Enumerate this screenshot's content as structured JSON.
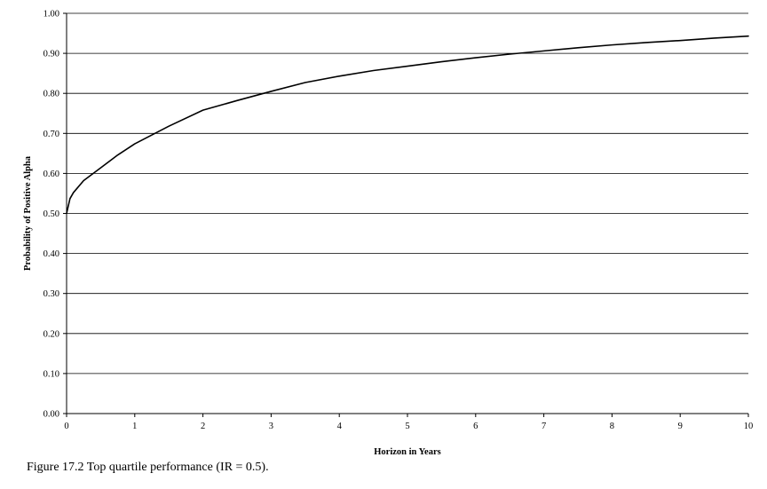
{
  "caption": "Figure 17.2 Top quartile performance (IR = 0.5).",
  "colors": {
    "line": "#000000",
    "grid": "#000000",
    "background": "#ffffff"
  },
  "chart_data": {
    "type": "line",
    "title": "",
    "xlabel": "Horizon in Years",
    "ylabel": "Probability of Positive Alpha",
    "xlim": [
      0,
      10
    ],
    "ylim": [
      0,
      1
    ],
    "xticks": [
      "0",
      "1",
      "2",
      "3",
      "4",
      "5",
      "6",
      "7",
      "8",
      "9",
      "10"
    ],
    "yticks": [
      "0.00",
      "0.10",
      "0.20",
      "0.30",
      "0.40",
      "0.50",
      "0.60",
      "0.70",
      "0.80",
      "0.90",
      "1.00"
    ],
    "grid": "horizontal",
    "legend": "none",
    "series": [
      {
        "x": [
          0,
          0.05,
          0.1,
          0.25,
          0.5,
          0.75,
          1,
          1.5,
          2,
          2.5,
          3,
          3.5,
          4,
          4.5,
          5,
          5.5,
          6,
          6.5,
          7,
          7.5,
          8,
          8.5,
          9,
          9.5,
          10
        ],
        "y": [
          0.5,
          0.537,
          0.552,
          0.582,
          0.614,
          0.646,
          0.674,
          0.718,
          0.758,
          0.782,
          0.805,
          0.827,
          0.843,
          0.857,
          0.868,
          0.879,
          0.889,
          0.898,
          0.906,
          0.914,
          0.921,
          0.927,
          0.932,
          0.938,
          0.943
        ]
      }
    ]
  }
}
